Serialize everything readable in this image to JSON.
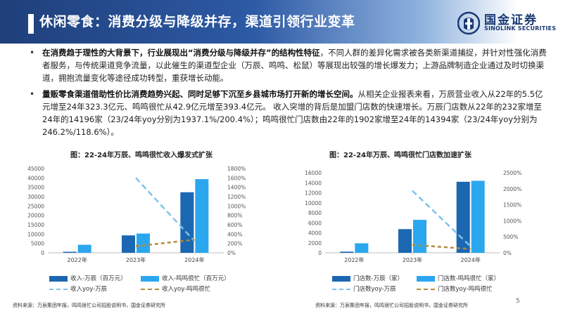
{
  "header": {
    "title": "休闲零食：消费分级与降级并存，渠道引领行业变革",
    "logo_cn": "国金证券",
    "logo_en": "SINOLINK SECURITIES"
  },
  "bullets": [
    {
      "bold": "在消费趋于理性的大背景下，行业展现出“消费分级与降级并存”的结构性特征",
      "text": "，不同人群的差异化需求被各类新渠道捕捉，并针对性强化消费者服务，与传统渠道竞争流量，以此催生的渠道型企业（万辰、鸣鸣、松鼠）等展现出较强的增长爆发力；上游品牌制造企业通过及时切换渠道，拥抱流量变化等途径成功转型，重获增长动能。"
    },
    {
      "bold": "量贩零食渠道借助性价比消费趋势兴起、同时足够下沉至乡县城市场打开新的增长空间。",
      "text": "从相关企业报表来看，万辰营业收入从22年的5.5亿元增至24年323.3亿元、鸣鸣很忙从42.9亿元增至393.4亿元。 收入突增的背后是加盟门店数的快速增长。万辰门店数从22年的232家增至24年的14196家（23/24年yoy分别为1937.1%/200.4%）；鸣鸣很忙门店数由22年的1902家增至24年的14394家（23/24年yoy分别为246.2%/118.6%）。"
    }
  ],
  "colors": {
    "dark_blue": "#1b67b2",
    "light_blue": "#2ba7ef",
    "dash_blue": "#7ec3ea",
    "dash_brown": "#b38b3c"
  },
  "chart_data": [
    {
      "type": "bar",
      "title": "图：22-24年万辰、鸣鸣很忙收入爆发式扩张",
      "categories": [
        "2022年",
        "2023年",
        "2024年"
      ],
      "ylim": [
        0,
        45000
      ],
      "yticks": [
        "0",
        "5000",
        "10000",
        "15000",
        "20000",
        "25000",
        "30000",
        "35000",
        "40000",
        "45000"
      ],
      "y2lim": [
        0,
        1800
      ],
      "y2ticks": [
        "0%",
        "200%",
        "400%",
        "600%",
        "800%",
        "1000%",
        "1200%",
        "1400%",
        "1600%",
        "1800%"
      ],
      "series": [
        {
          "name": "收入-万辰（百万元）",
          "kind": "bar",
          "values": [
            550,
            9300,
            32330
          ]
        },
        {
          "name": "收入-鸣鸣很忙（百万元）",
          "kind": "bar",
          "values": [
            4290,
            10300,
            39340
          ]
        },
        {
          "name": "收入yoy-万辰",
          "kind": "line",
          "values": [
            null,
            1600,
            250
          ]
        },
        {
          "name": "收入yoy-鸣鸣很忙",
          "kind": "line",
          "values": [
            null,
            140,
            280
          ]
        }
      ]
    },
    {
      "type": "bar",
      "title": "图：22-24年万辰、鸣鸣很忙门店数加速扩张",
      "categories": [
        "2022年",
        "2023年",
        "2024年"
      ],
      "ylim": [
        0,
        16000
      ],
      "yticks": [
        "0",
        "2000",
        "4000",
        "6000",
        "8000",
        "10000",
        "12000",
        "14000",
        "16000"
      ],
      "y2lim": [
        0,
        2500
      ],
      "y2ticks": [
        "0%",
        "500%",
        "1000%",
        "1500%",
        "2000%",
        "2500%"
      ],
      "series": [
        {
          "name": "门店数-万辰（家）",
          "kind": "bar",
          "values": [
            232,
            4730,
            14196
          ]
        },
        {
          "name": "门店数-鸣鸣很忙（家）",
          "kind": "bar",
          "values": [
            1902,
            6585,
            14394
          ]
        },
        {
          "name": "门店数yoy-万辰",
          "kind": "line",
          "values": [
            null,
            1937.1,
            200.4
          ]
        },
        {
          "name": "门店数yoy-鸣鸣很忙",
          "kind": "line",
          "values": [
            null,
            246.2,
            118.6
          ]
        }
      ]
    }
  ],
  "sources": [
    "资料来源：万辰集团年报，鸣鸣很忙公司招股说明书，国金证券研究所",
    "资料来源：万辰集团年报，鸣鸣很忙公司招股说明书，国金证券研究所"
  ],
  "page_number": "5"
}
